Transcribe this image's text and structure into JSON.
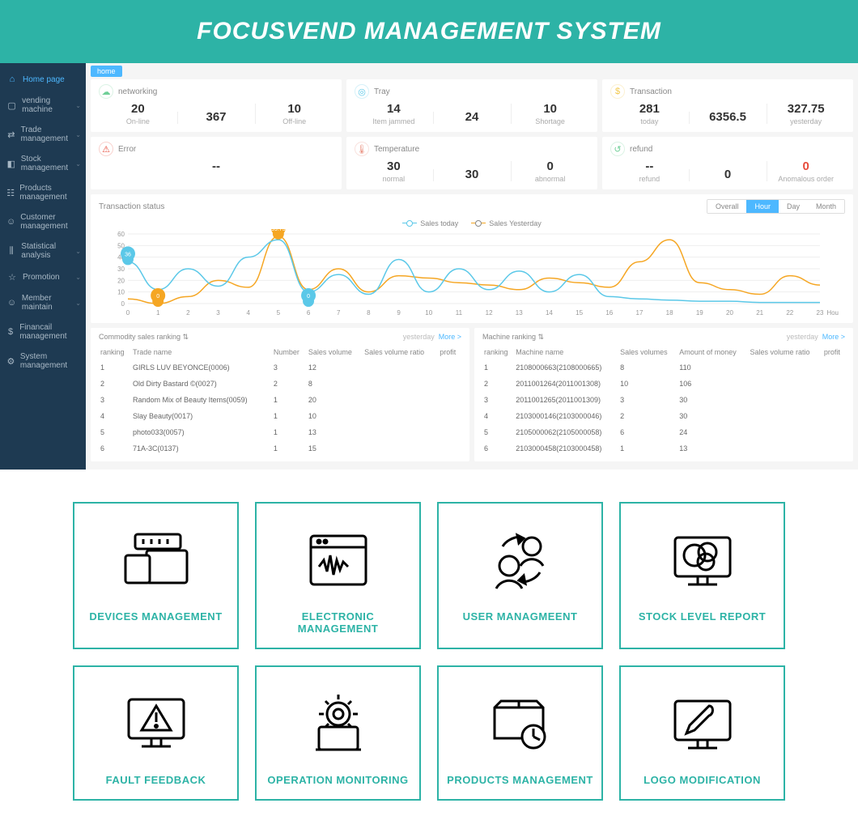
{
  "banner": {
    "title": "FOCUSVEND MANAGEMENT SYSTEM",
    "bg": "#2db3a6"
  },
  "breadcrumb": "home",
  "sidebar": {
    "bg": "#1e3a52",
    "items": [
      {
        "label": "Home page",
        "icon": "⌂",
        "active": true,
        "expand": false
      },
      {
        "label": "vending machine",
        "icon": "▢",
        "expand": true
      },
      {
        "label": "Trade management",
        "icon": "⇄",
        "expand": true
      },
      {
        "label": "Stock management",
        "icon": "◧",
        "expand": true
      },
      {
        "label": "Products management",
        "icon": "☷",
        "expand": false
      },
      {
        "label": "Customer management",
        "icon": "☺",
        "expand": false
      },
      {
        "label": "Statistical analysis",
        "icon": "⫼",
        "expand": true
      },
      {
        "label": "Promotion",
        "icon": "☆",
        "expand": true
      },
      {
        "label": "Member maintain",
        "icon": "☺",
        "expand": true
      },
      {
        "label": "Financail management",
        "icon": "$",
        "expand": false
      },
      {
        "label": "System management",
        "icon": "⚙",
        "expand": false
      }
    ]
  },
  "cards": [
    {
      "title": "networking",
      "icon": "☁",
      "iconColor": "#6fcf97",
      "metrics": [
        {
          "val": "20",
          "lbl": "On-line"
        },
        {
          "val": "367",
          "lbl": ""
        },
        {
          "val": "10",
          "lbl": "Off-line"
        }
      ]
    },
    {
      "title": "Tray",
      "icon": "◎",
      "iconColor": "#5bc8e8",
      "metrics": [
        {
          "val": "14",
          "lbl": "Item jammed"
        },
        {
          "val": "24",
          "lbl": ""
        },
        {
          "val": "10",
          "lbl": "Shortage"
        }
      ]
    },
    {
      "title": "Transaction",
      "icon": "$",
      "iconColor": "#f2c94c",
      "metrics": [
        {
          "val": "281",
          "lbl": "today"
        },
        {
          "val": "6356.5",
          "lbl": ""
        },
        {
          "val": "327.75",
          "lbl": "yesterday"
        }
      ]
    },
    {
      "title": "Error",
      "icon": "⚠",
      "iconColor": "#e74c3c",
      "metrics": [
        {
          "val": "--",
          "lbl": ""
        }
      ]
    },
    {
      "title": "Temperature",
      "icon": "🌡",
      "iconColor": "#e98b7a",
      "metrics": [
        {
          "val": "30",
          "lbl": "normal"
        },
        {
          "val": "30",
          "lbl": ""
        },
        {
          "val": "0",
          "lbl": "abnormal"
        }
      ]
    },
    {
      "title": "refund",
      "icon": "↺",
      "iconColor": "#6fcf97",
      "metrics": [
        {
          "val": "--",
          "lbl": "refund"
        },
        {
          "val": "0",
          "lbl": ""
        },
        {
          "val": "0",
          "lbl": "Anomalous order",
          "red": true
        }
      ]
    }
  ],
  "chart": {
    "title": "Transaction status",
    "tabs": [
      "Overall",
      "Hour",
      "Day",
      "Month"
    ],
    "activeTab": 1,
    "legend": [
      {
        "label": "Sales today",
        "color": "#5bc8e8"
      },
      {
        "label": "Sales Yesterday",
        "color": "#f5a623"
      }
    ],
    "xLabels": [
      "0",
      "1",
      "2",
      "3",
      "4",
      "5",
      "6",
      "7",
      "8",
      "9",
      "10",
      "11",
      "12",
      "13",
      "14",
      "15",
      "16",
      "17",
      "18",
      "19",
      "20",
      "21",
      "22",
      "23"
    ],
    "xAxisTitle": "Hou",
    "yMax": 60,
    "yStep": 10,
    "seriesToday": [
      36,
      12,
      30,
      15,
      40,
      55,
      10,
      25,
      8,
      38,
      10,
      30,
      12,
      28,
      10,
      25,
      6,
      4,
      3,
      2,
      2,
      1,
      1,
      1
    ],
    "seriesYesterday": [
      4,
      0,
      6,
      20,
      14,
      58,
      12,
      30,
      10,
      24,
      22,
      18,
      16,
      12,
      22,
      18,
      14,
      36,
      55,
      18,
      12,
      8,
      24,
      16
    ],
    "markers": [
      {
        "name": "36",
        "x": 0,
        "y": 36,
        "color": "#5bc8e8"
      },
      {
        "name": "0",
        "x": 1,
        "y": 0,
        "color": "#f5a623"
      },
      {
        "name": "59.75",
        "x": 5,
        "y": 58,
        "color": "#f5a623"
      },
      {
        "name": "0",
        "x": 6,
        "y": 0,
        "color": "#5bc8e8"
      }
    ],
    "gridColor": "#eeeeee"
  },
  "commodity": {
    "title": "Commodity sales ranking",
    "sub": "yesterday",
    "more": "More >",
    "cols": [
      "ranking",
      "Trade name",
      "Number",
      "Sales volume",
      "Sales volume ratio",
      "profit"
    ],
    "rows": [
      [
        "1",
        "GIRLS LUV BEYONCE(0006)",
        "3",
        "12",
        "",
        ""
      ],
      [
        "2",
        "Old Dirty Bastard ©(0027)",
        "2",
        "8",
        "",
        ""
      ],
      [
        "3",
        "Random Mix of Beauty Items(0059)",
        "1",
        "20",
        "",
        ""
      ],
      [
        "4",
        "Slay Beauty(0017)",
        "1",
        "10",
        "",
        ""
      ],
      [
        "5",
        "photo033(0057)",
        "1",
        "13",
        "",
        ""
      ],
      [
        "6",
        "71A-3C(0137)",
        "1",
        "15",
        "",
        ""
      ]
    ]
  },
  "machine": {
    "title": "Machine ranking",
    "sub": "yesterday",
    "more": "More >",
    "cols": [
      "ranking",
      "Machine name",
      "Sales volumes",
      "Amount of money",
      "Sales volume ratio",
      "profit"
    ],
    "rows": [
      [
        "1",
        "2108000663(2108000665)",
        "8",
        "110",
        "",
        ""
      ],
      [
        "2",
        "2011001264(2011001308)",
        "10",
        "106",
        "",
        ""
      ],
      [
        "3",
        "2011001265(2011001309)",
        "3",
        "30",
        "",
        ""
      ],
      [
        "4",
        "2103000146(2103000046)",
        "2",
        "30",
        "",
        ""
      ],
      [
        "5",
        "2105000062(2105000058)",
        "6",
        "24",
        "",
        ""
      ],
      [
        "6",
        "2103000458(2103000458)",
        "1",
        "13",
        "",
        ""
      ]
    ]
  },
  "features": [
    {
      "label": "DEVICES MANAGEMENT",
      "icon": "devices"
    },
    {
      "label": "ELECTRONIC MANAGEMENT",
      "icon": "electronic"
    },
    {
      "label": "USER MANAGMEENT",
      "icon": "user"
    },
    {
      "label": "STOCK LEVEL REPORT",
      "icon": "stock"
    },
    {
      "label": "FAULT FEEDBACK",
      "icon": "fault"
    },
    {
      "label": "OPERATION MONITORING",
      "icon": "operation"
    },
    {
      "label": "PRODUCTS MANAGEMENT",
      "icon": "products"
    },
    {
      "label": "LOGO MODIFICATION",
      "icon": "logo"
    }
  ]
}
